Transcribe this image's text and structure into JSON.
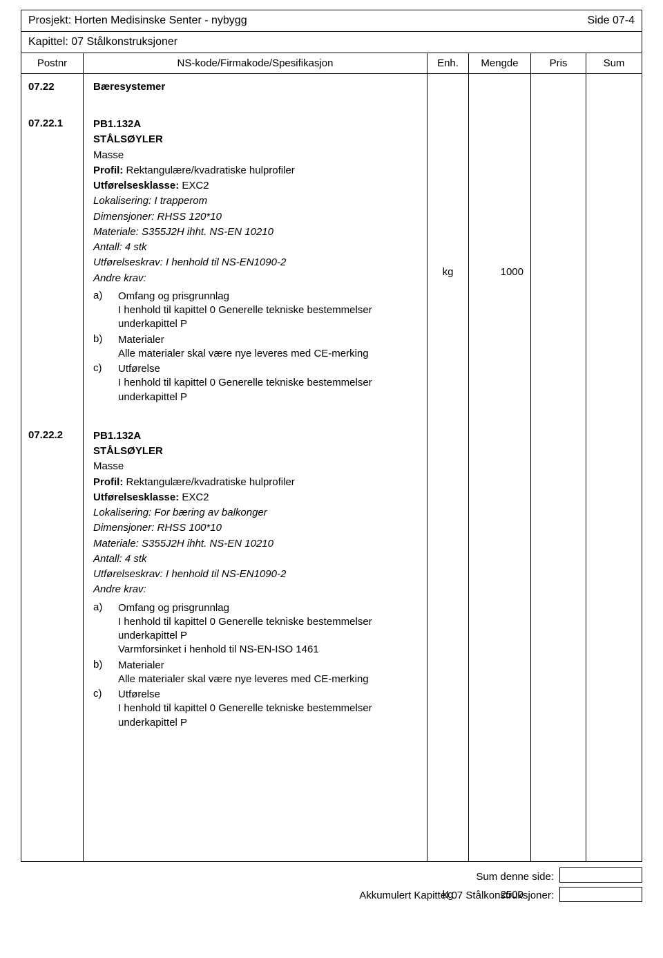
{
  "header": {
    "project": "Prosjekt: Horten Medisinske Senter - nybygg",
    "page": "Side 07-4",
    "chapter": "Kapittel: 07 Stålkonstruksjoner"
  },
  "columns": {
    "postnr": "Postnr",
    "spec": "NS-kode/Firmakode/Spesifikasjon",
    "enh": "Enh.",
    "mengde": "Mengde",
    "pris": "Pris",
    "sum": "Sum"
  },
  "rows": [
    {
      "postnr": "07.22",
      "title": "Bæresystemer",
      "enh": "",
      "mengde": ""
    },
    {
      "postnr": "07.22.1",
      "code": "PB1.132A",
      "heading": "STÅLSØYLER",
      "masse": "Masse",
      "lines": [
        {
          "b": "Profil:",
          "t": " Rektangulære/kvadratiske hulprofiler"
        },
        {
          "b": "Utførelsesklasse:",
          "t": " EXC2"
        }
      ],
      "italics": [
        "Lokalisering: I trapperom",
        "Dimensjoner: RHSS 120*10",
        "Materiale: S355J2H ihht. NS-EN 10210",
        "Antall: 4 stk",
        "Utførelseskrav: I henhold til NS-EN1090-2",
        "Andre krav:"
      ],
      "sub": [
        {
          "l": "a)",
          "t": "Omfang og prisgrunnlag\nI henhold til kapittel 0 Generelle tekniske bestemmelser underkapittel P"
        },
        {
          "l": "b)",
          "t": "Materialer\nAlle materialer skal være nye leveres med CE-merking"
        },
        {
          "l": "c)",
          "t": "Utførelse\nI henhold til kapittel 0 Generelle tekniske bestemmelser underkapittel P"
        }
      ],
      "enh": "kg",
      "mengde": "1000"
    },
    {
      "postnr": "07.22.2",
      "code": "PB1.132A",
      "heading": "STÅLSØYLER",
      "masse": "Masse",
      "lines": [
        {
          "b": "Profil:",
          "t": " Rektangulære/kvadratiske hulprofiler"
        },
        {
          "b": "Utførelsesklasse:",
          "t": " EXC2"
        }
      ],
      "italics": [
        "Lokalisering: For bæring av balkonger",
        "Dimensjoner: RHSS 100*10",
        "Materiale: S355J2H ihht. NS-EN 10210",
        "Antall: 4 stk",
        "Utførelseskrav: I henhold til NS-EN1090-2",
        "Andre krav:"
      ],
      "sub": [
        {
          "l": "a)",
          "t": "Omfang og prisgrunnlag\nI henhold til kapittel 0 Generelle tekniske bestemmelser underkapittel P\nVarmforsinket i henhold til NS-EN-ISO 1461"
        },
        {
          "l": "b)",
          "t": "Materialer\nAlle materialer skal være nye leveres med CE-merking"
        },
        {
          "l": "c)",
          "t": "Utførelse\nI henhold til kapittel 0 Generelle tekniske bestemmelser underkapittel P"
        }
      ],
      "enh": "kg",
      "mengde": "2500"
    }
  ],
  "footer": {
    "sum_side": "Sum denne side:",
    "akkumulert": "Akkumulert Kapittel 07 Stålkonstruksjoner:"
  }
}
